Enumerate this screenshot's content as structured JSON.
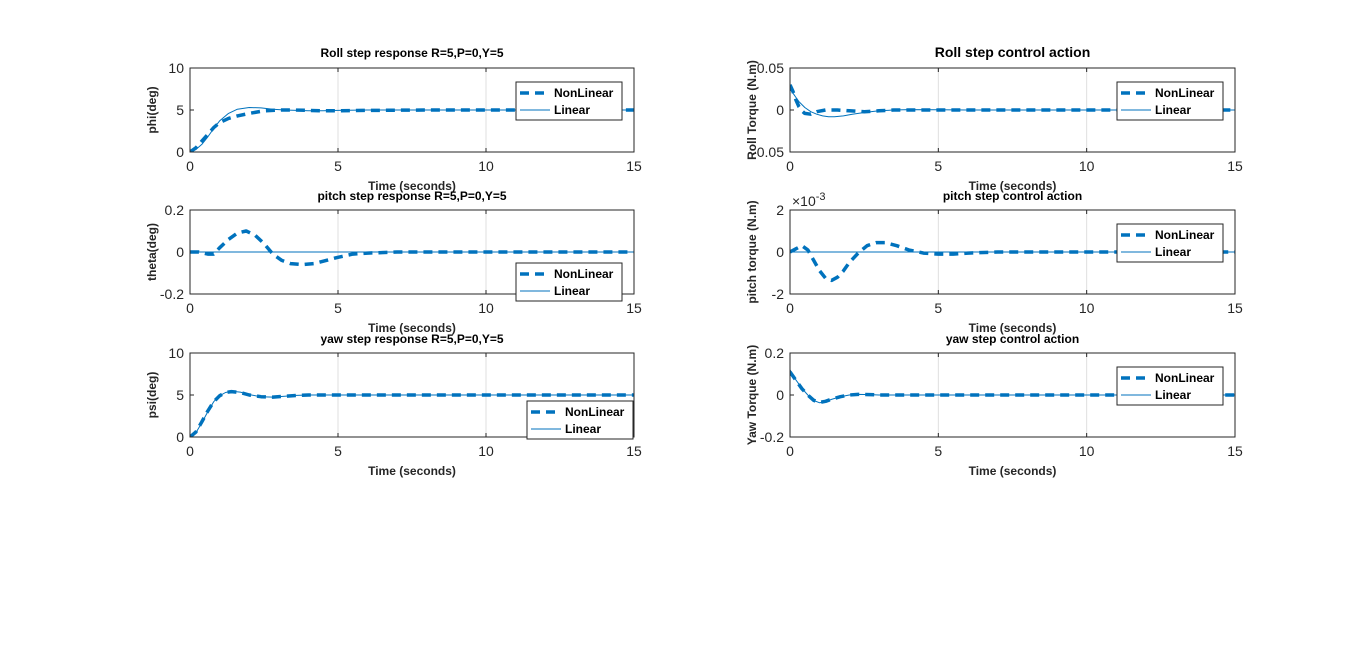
{
  "figure": {
    "background": "#ffffff",
    "line_color": "#0072bd",
    "axis_color": "#262626",
    "grid_color": "#dfdfdf"
  },
  "chart_data": [
    {
      "type": "line",
      "title": "Roll step response R=5,P=0,Y=5",
      "xlabel": "Time (seconds)",
      "ylabel": "phi(deg)",
      "xlim": [
        0,
        15
      ],
      "ylim": [
        0,
        10
      ],
      "xticks": [
        "0",
        "5",
        "10",
        "15"
      ],
      "yticks": [
        "0",
        "5",
        "10"
      ],
      "grid": "vertical",
      "legend_position": "top-right",
      "series": [
        {
          "name": "NonLinear",
          "style": "dashed",
          "x": [
            0,
            0.2,
            0.4,
            0.6,
            0.8,
            1.0,
            1.3,
            1.6,
            2.0,
            2.5,
            3.0,
            3.5,
            4.0,
            4.5,
            5.0,
            6.0,
            8.0,
            10.0,
            12.0,
            15.0
          ],
          "y": [
            0,
            0.5,
            1.3,
            2.1,
            2.9,
            3.5,
            4.0,
            4.3,
            4.6,
            4.9,
            5.0,
            5.0,
            4.95,
            4.9,
            4.9,
            4.95,
            5.0,
            5.0,
            5.0,
            5.0
          ]
        },
        {
          "name": "Linear",
          "style": "solid",
          "x": [
            0,
            0.2,
            0.4,
            0.6,
            0.8,
            1.0,
            1.3,
            1.6,
            2.0,
            2.4,
            2.8,
            3.2,
            3.6,
            4.0,
            4.5,
            5.0,
            6.0,
            8.0,
            10.0,
            12.0,
            15.0
          ],
          "y": [
            0,
            0.3,
            0.9,
            1.8,
            2.8,
            3.7,
            4.6,
            5.1,
            5.3,
            5.25,
            5.1,
            5.0,
            4.95,
            4.9,
            4.9,
            4.95,
            5.0,
            5.0,
            5.0,
            5.0,
            5.0
          ]
        }
      ]
    },
    {
      "type": "line",
      "title": "Roll step control action",
      "xlabel": "Time (seconds)",
      "ylabel": "Roll Torque (N.m)",
      "xlim": [
        0,
        15
      ],
      "ylim": [
        -0.05,
        0.05
      ],
      "xticks": [
        "0",
        "5",
        "10",
        "15"
      ],
      "yticks": [
        "-0.05",
        "0",
        "0.05"
      ],
      "grid": "vertical",
      "legend_position": "top-right",
      "series": [
        {
          "name": "NonLinear",
          "style": "dashed",
          "x": [
            0,
            0.1,
            0.2,
            0.3,
            0.4,
            0.5,
            0.7,
            0.9,
            1.2,
            1.6,
            2.0,
            2.5,
            3.0,
            3.5,
            4.0,
            6.0,
            10.0,
            15.0
          ],
          "y": [
            0.03,
            0.022,
            0.012,
            0.004,
            -0.001,
            -0.004,
            -0.005,
            -0.002,
            0.0,
            0.0,
            -0.001,
            -0.002,
            -0.001,
            0.0,
            0.0,
            0.0,
            0.0,
            0.0
          ]
        },
        {
          "name": "Linear",
          "style": "solid",
          "x": [
            0,
            0.1,
            0.2,
            0.3,
            0.5,
            0.7,
            0.9,
            1.1,
            1.3,
            1.5,
            1.8,
            2.1,
            2.5,
            3.0,
            3.5,
            4.0,
            5.0,
            6.0,
            10.0,
            15.0
          ],
          "y": [
            0.025,
            0.02,
            0.015,
            0.01,
            0.003,
            -0.002,
            -0.005,
            -0.007,
            -0.008,
            -0.008,
            -0.007,
            -0.005,
            -0.003,
            -0.001,
            0.0,
            0.0005,
            0.0002,
            0.0,
            0.0,
            0.0
          ]
        }
      ]
    },
    {
      "type": "line",
      "title": "pitch step response R=5,P=0,Y=5",
      "xlabel": "Time (seconds)",
      "ylabel": "theta(deg)",
      "xlim": [
        0,
        15
      ],
      "ylim": [
        -0.2,
        0.2
      ],
      "xticks": [
        "0",
        "5",
        "10",
        "15"
      ],
      "yticks": [
        "-0.2",
        "0",
        "0.2"
      ],
      "grid": "vertical",
      "legend_position": "bottom-right",
      "series": [
        {
          "name": "NonLinear",
          "style": "dashed",
          "x": [
            0,
            0.3,
            0.6,
            0.8,
            1.0,
            1.3,
            1.6,
            1.9,
            2.2,
            2.5,
            2.8,
            3.1,
            3.4,
            3.8,
            4.2,
            4.6,
            5.0,
            5.5,
            6.0,
            7.0,
            8.0,
            10.0,
            15.0
          ],
          "y": [
            0,
            0.0,
            -0.01,
            -0.01,
            0.02,
            0.06,
            0.09,
            0.1,
            0.08,
            0.04,
            -0.01,
            -0.04,
            -0.055,
            -0.06,
            -0.055,
            -0.04,
            -0.025,
            -0.01,
            -0.005,
            0.0,
            0.0,
            0.0,
            0.0
          ]
        },
        {
          "name": "Linear",
          "style": "solid",
          "x": [
            0,
            15
          ],
          "y": [
            0,
            0
          ]
        }
      ]
    },
    {
      "type": "line",
      "title": "pitch step control action",
      "xlabel": "Time (seconds)",
      "ylabel": "pitch torque (N.m)",
      "xlim": [
        0,
        15
      ],
      "ylim": [
        -2,
        2
      ],
      "xticks": [
        "0",
        "5",
        "10",
        "15"
      ],
      "yticks": [
        "-2",
        "0",
        "2"
      ],
      "y_exponent": "-3",
      "grid": "vertical",
      "legend_position": "top-right",
      "series": [
        {
          "name": "NonLinear",
          "style": "dashed",
          "x": [
            0,
            0.2,
            0.4,
            0.6,
            0.8,
            1.0,
            1.2,
            1.4,
            1.6,
            1.8,
            2.0,
            2.3,
            2.6,
            2.9,
            3.2,
            3.6,
            4.0,
            4.5,
            5.0,
            5.5,
            6.0,
            7.0,
            8.0,
            10.0,
            15.0
          ],
          "y": [
            0,
            0.15,
            0.3,
            0.1,
            -0.4,
            -0.9,
            -1.25,
            -1.35,
            -1.2,
            -0.9,
            -0.5,
            -0.05,
            0.3,
            0.45,
            0.45,
            0.3,
            0.1,
            -0.05,
            -0.1,
            -0.1,
            -0.05,
            0.0,
            0.0,
            0.0,
            0.0
          ]
        },
        {
          "name": "Linear",
          "style": "solid",
          "x": [
            0,
            15
          ],
          "y": [
            0,
            0
          ]
        }
      ]
    },
    {
      "type": "line",
      "title": "yaw step response R=5,P=0,Y=5",
      "xlabel": "Time (seconds)",
      "ylabel": "psi(deg)",
      "xlim": [
        0,
        15
      ],
      "ylim": [
        0,
        10
      ],
      "xticks": [
        "0",
        "5",
        "10",
        "15"
      ],
      "yticks": [
        "0",
        "5",
        "10"
      ],
      "grid": "vertical",
      "legend_position": "bottom-right",
      "series": [
        {
          "name": "NonLinear",
          "style": "dashed",
          "x": [
            0,
            0.2,
            0.4,
            0.6,
            0.8,
            1.0,
            1.2,
            1.4,
            1.7,
            2.0,
            2.4,
            2.8,
            3.2,
            3.6,
            4.0,
            5.0,
            6.0,
            8.0,
            10.0,
            12.0,
            15.0
          ],
          "y": [
            0,
            0.6,
            1.8,
            3.1,
            4.2,
            4.9,
            5.3,
            5.4,
            5.3,
            5.0,
            4.8,
            4.75,
            4.85,
            4.95,
            5.0,
            5.0,
            5.0,
            5.0,
            5.0,
            5.0,
            5.0
          ]
        },
        {
          "name": "Linear",
          "style": "solid",
          "x": [
            0,
            0.2,
            0.4,
            0.6,
            0.8,
            1.0,
            1.2,
            1.4,
            1.7,
            2.0,
            2.4,
            2.8,
            3.2,
            3.6,
            4.0,
            5.0,
            6.0,
            8.0,
            10.0,
            12.0,
            15.0
          ],
          "y": [
            0,
            0.5,
            1.7,
            3.0,
            4.2,
            4.9,
            5.3,
            5.45,
            5.35,
            5.05,
            4.8,
            4.75,
            4.85,
            4.95,
            5.0,
            5.0,
            5.0,
            5.0,
            5.0,
            5.0,
            5.0
          ]
        }
      ]
    },
    {
      "type": "line",
      "title": "yaw step control action",
      "xlabel": "Time (seconds)",
      "ylabel": "Yaw Torque (N.m)",
      "xlim": [
        0,
        15
      ],
      "ylim": [
        -0.2,
        0.2
      ],
      "xticks": [
        "0",
        "5",
        "10",
        "15"
      ],
      "yticks": [
        "-0.2",
        "0",
        "0.2"
      ],
      "grid": "vertical",
      "legend_position": "top-right",
      "series": [
        {
          "name": "NonLinear",
          "style": "dashed",
          "x": [
            0,
            0.1,
            0.2,
            0.3,
            0.4,
            0.6,
            0.8,
            1.0,
            1.2,
            1.4,
            1.7,
            2.0,
            2.3,
            2.7,
            3.0,
            4.0,
            6.0,
            10.0,
            15.0
          ],
          "y": [
            0.11,
            0.09,
            0.07,
            0.05,
            0.03,
            0.0,
            -0.025,
            -0.035,
            -0.03,
            -0.02,
            -0.008,
            0.0,
            0.003,
            0.002,
            0.0,
            0.0,
            0.0,
            0.0,
            0.0
          ]
        },
        {
          "name": "Linear",
          "style": "solid",
          "x": [
            0,
            0.1,
            0.2,
            0.3,
            0.4,
            0.6,
            0.8,
            1.0,
            1.2,
            1.4,
            1.7,
            2.0,
            2.3,
            2.7,
            3.0,
            4.0,
            6.0,
            10.0,
            15.0
          ],
          "y": [
            0.12,
            0.095,
            0.072,
            0.052,
            0.032,
            0.0,
            -0.026,
            -0.037,
            -0.032,
            -0.021,
            -0.008,
            0.0,
            0.003,
            0.002,
            0.0,
            0.0,
            0.0,
            0.0,
            0.0
          ]
        }
      ]
    }
  ]
}
